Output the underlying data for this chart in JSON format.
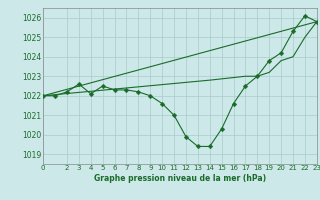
{
  "bg_color": "#cce8e8",
  "grid_color": "#aacccc",
  "line_color": "#1a6b2a",
  "text_color": "#1a6b2a",
  "title": "Graphe pression niveau de la mer (hPa)",
  "xlim": [
    0,
    23
  ],
  "ylim": [
    1018.5,
    1026.5
  ],
  "yticks": [
    1019,
    1020,
    1021,
    1022,
    1023,
    1024,
    1025,
    1026
  ],
  "xticks": [
    0,
    2,
    3,
    4,
    5,
    6,
    7,
    8,
    9,
    10,
    11,
    12,
    13,
    14,
    15,
    16,
    17,
    18,
    19,
    20,
    21,
    22,
    23
  ],
  "series1": {
    "x": [
      0,
      1,
      2,
      3,
      4,
      5,
      6,
      7,
      8,
      9,
      10,
      11,
      12,
      13,
      14,
      15,
      16,
      17,
      18,
      19,
      20,
      21,
      22,
      23
    ],
    "y": [
      1022.0,
      1022.0,
      1022.2,
      1022.6,
      1022.1,
      1022.5,
      1022.3,
      1022.3,
      1022.2,
      1022.0,
      1021.6,
      1021.0,
      1019.9,
      1019.4,
      1019.4,
      1020.3,
      1021.6,
      1022.5,
      1023.0,
      1023.8,
      1024.2,
      1025.3,
      1026.1,
      1025.8
    ]
  },
  "series2": {
    "x": [
      0,
      23
    ],
    "y": [
      1022.0,
      1025.8
    ]
  },
  "series3": {
    "x": [
      0,
      14,
      17,
      18,
      19,
      20,
      21,
      22,
      23
    ],
    "y": [
      1022.0,
      1022.8,
      1023.0,
      1023.0,
      1023.2,
      1023.8,
      1024.0,
      1025.0,
      1025.8
    ]
  }
}
